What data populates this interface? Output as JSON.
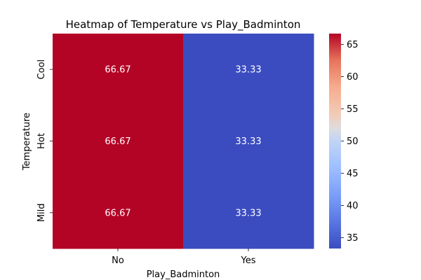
{
  "chart_data": {
    "type": "heatmap",
    "title": "Heatmap of Temperature vs Play_Badminton",
    "xlabel": "Play_Badminton",
    "ylabel": "Temperature",
    "x_categories": [
      "No",
      "Yes"
    ],
    "y_categories": [
      "Cool",
      "Hot",
      "Mild"
    ],
    "values": [
      [
        66.67,
        33.33
      ],
      [
        66.67,
        33.33
      ],
      [
        66.67,
        33.33
      ]
    ],
    "cell_labels": [
      [
        "66.67",
        "33.33"
      ],
      [
        "66.67",
        "33.33"
      ],
      [
        "66.67",
        "33.33"
      ]
    ],
    "colormap": "coolwarm",
    "vmin": 33.33,
    "vmax": 66.67,
    "colorbar_ticks": [
      35,
      40,
      45,
      50,
      55,
      60,
      65
    ],
    "colors": {
      "low": "#3b4cc0",
      "mid": "#dddddd",
      "high": "#b40426"
    }
  }
}
